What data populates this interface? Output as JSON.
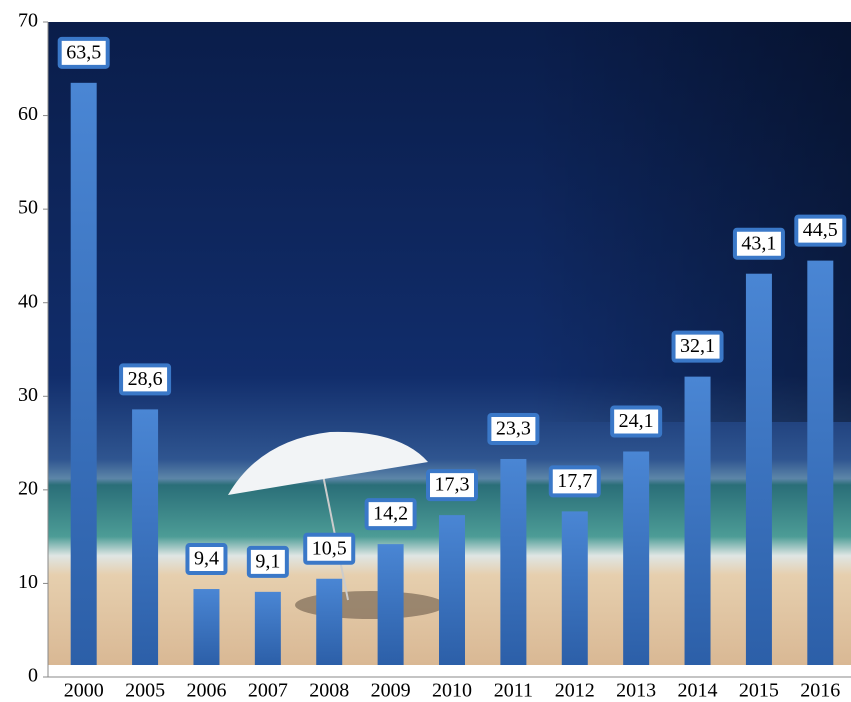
{
  "chart_data": {
    "type": "bar",
    "categories": [
      "2000",
      "2005",
      "2006",
      "2007",
      "2008",
      "2009",
      "2010",
      "2011",
      "2012",
      "2013",
      "2014",
      "2015",
      "2016"
    ],
    "values": [
      63.5,
      28.6,
      9.4,
      9.1,
      10.5,
      14.2,
      17.3,
      23.3,
      17.7,
      24.1,
      32.1,
      43.1,
      44.5
    ],
    "value_labels": [
      "63,5",
      "28,6",
      "9,4",
      "9,1",
      "10,5",
      "14,2",
      "17,3",
      "23,3",
      "17,7",
      "24,1",
      "32,1",
      "43,1",
      "44,5"
    ],
    "color": "#3a78c8",
    "ylim": [
      0,
      70
    ],
    "yticks": [
      0,
      10,
      20,
      30,
      40,
      50,
      60,
      70
    ]
  }
}
